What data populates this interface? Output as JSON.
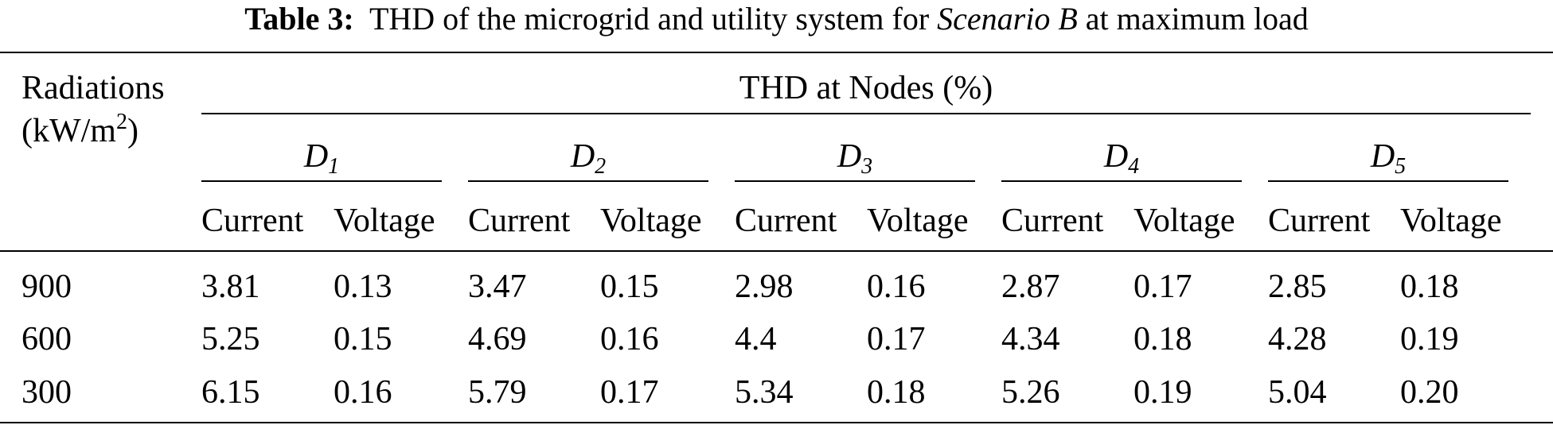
{
  "caption": {
    "label": "Table 3:",
    "text_pre": "THD of the microgrid and utility system for",
    "scenario": "Scenario B",
    "text_post": "at maximum load"
  },
  "header": {
    "row_label_line1": "Radiations",
    "row_label_line2": "(kW/m",
    "row_label_sup": "2",
    "row_label_close": ")",
    "group_title": "THD at Nodes (%)",
    "nodes": [
      {
        "letter": "D",
        "sub": "1"
      },
      {
        "letter": "D",
        "sub": "2"
      },
      {
        "letter": "D",
        "sub": "3"
      },
      {
        "letter": "D",
        "sub": "4"
      },
      {
        "letter": "D",
        "sub": "5"
      }
    ],
    "sub_current": "Current",
    "sub_voltage": "Voltage"
  },
  "rows": [
    {
      "radiation": "900",
      "values": [
        "3.81",
        "0.13",
        "3.47",
        "0.15",
        "2.98",
        "0.16",
        "2.87",
        "0.17",
        "2.85",
        "0.18"
      ]
    },
    {
      "radiation": "600",
      "values": [
        "5.25",
        "0.15",
        "4.69",
        "0.16",
        "4.4",
        "0.17",
        "4.34",
        "0.18",
        "4.28",
        "0.19"
      ]
    },
    {
      "radiation": "300",
      "values": [
        "6.15",
        "0.16",
        "5.79",
        "0.17",
        "5.34",
        "0.18",
        "5.26",
        "0.19",
        "5.04",
        "0.20"
      ]
    }
  ]
}
